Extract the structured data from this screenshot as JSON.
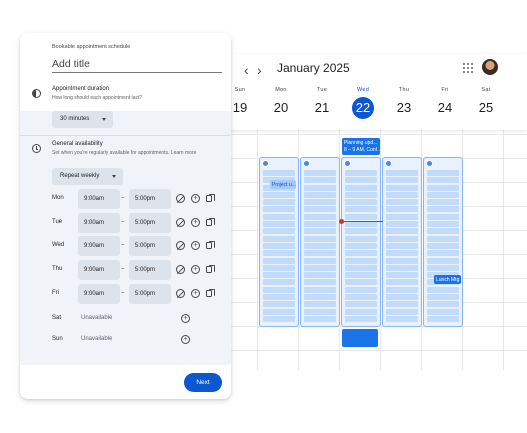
{
  "calendar": {
    "month_title": "January 2025",
    "prev_label": "‹",
    "next_label": "›",
    "days": [
      {
        "dow": "Sun",
        "num": "19"
      },
      {
        "dow": "Mon",
        "num": "20"
      },
      {
        "dow": "Tue",
        "num": "21"
      },
      {
        "dow": "Wed",
        "num": "22"
      },
      {
        "dow": "Thu",
        "num": "23"
      },
      {
        "dow": "Fri",
        "num": "24"
      },
      {
        "dow": "Sat",
        "num": "25"
      }
    ],
    "events": {
      "planning": "Planning upd...",
      "planning_time": "8 – 9 AM, Conf...",
      "project": "Project u...",
      "lunch": "Lunch Mtg"
    }
  },
  "panel": {
    "schedule_label": "Bookable appointment schedule",
    "title_placeholder": "Add title",
    "duration": {
      "title": "Appointment duration",
      "subtitle": "How long should each appointment last?",
      "value": "30 minutes"
    },
    "availability": {
      "title": "General availability",
      "subtitle": "Set when you're regularly available for appointments. Learn more",
      "repeat": "Repeat weekly",
      "days": [
        {
          "name": "Mon",
          "start": "9:00am",
          "end": "5:00pm"
        },
        {
          "name": "Tue",
          "start": "9:00am",
          "end": "5:00pm"
        },
        {
          "name": "Wed",
          "start": "9:00am",
          "end": "5:00pm"
        },
        {
          "name": "Thu",
          "start": "9:00am",
          "end": "5:00pm"
        },
        {
          "name": "Fri",
          "start": "9:00am",
          "end": "5:00pm"
        }
      ],
      "unavailable_days": [
        {
          "name": "Sat",
          "status": "Unavailable"
        },
        {
          "name": "Sun",
          "status": "Unavailable"
        }
      ],
      "dash": "–"
    },
    "next_label": "Next"
  },
  "colors": {
    "accent": "#0b57d0",
    "availability_fill": "#e8f1fd",
    "event": "#1a73e8",
    "now_line": "#d93025"
  },
  "icons": [
    "chevron-left-icon",
    "chevron-right-icon",
    "apps-grid-icon",
    "avatar",
    "duration-icon",
    "clock-icon",
    "no-availability-icon",
    "add-time-icon",
    "copy-times-icon",
    "caret-down-icon"
  ]
}
